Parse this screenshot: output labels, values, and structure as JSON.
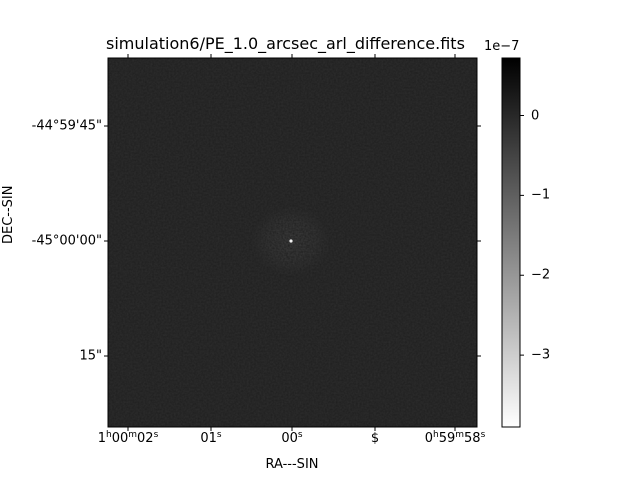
{
  "chart_data": {
    "type": "heatmap",
    "title": "simulation6/PE_1.0_arcsec_arl_difference.fits",
    "xlabel": "RA---SIN",
    "ylabel": "DEC--SIN",
    "x_ticks": [
      {
        "h": "1",
        "hu": "h",
        "m": "00",
        "mu": "m",
        "s": "02",
        "su": "s"
      },
      {
        "h": "",
        "hu": "",
        "m": "",
        "mu": "",
        "s": "01",
        "su": "s"
      },
      {
        "h": "",
        "hu": "",
        "m": "",
        "mu": "",
        "s": "00",
        "su": "s"
      },
      {
        "h": "",
        "hu": "",
        "m": "",
        "mu": "",
        "s": "$",
        "su": ""
      },
      {
        "h": "0",
        "hu": "h",
        "m": "59",
        "mu": "m",
        "s": "58",
        "su": "s"
      }
    ],
    "y_ticks": [
      "-44°59'45\"",
      "-45°00'00\"",
      "15\""
    ],
    "colorbar": {
      "exponent_label": "1e−7",
      "ticks": [
        "0",
        "−1",
        "−2",
        "−3"
      ],
      "tick_values": [
        0,
        -1,
        -2,
        -3
      ],
      "range": [
        -3.9,
        0.72
      ],
      "colormap": "gray_r"
    },
    "image": {
      "background_level": 0.05,
      "noise": "uniform low-amplitude residual noise across field",
      "center_artifact": "small bright point with surrounding speckle ring at image center",
      "min_value_at_center": -3.9
    }
  }
}
